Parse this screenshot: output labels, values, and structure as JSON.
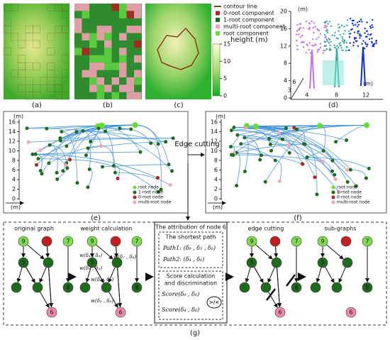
{
  "panels": {
    "a": "(a)",
    "b": "(b)",
    "c": "(c)",
    "d": "(d)",
    "e": "(e)",
    "f": "(f)",
    "g": "(g)"
  },
  "legend_top": [
    "contour line",
    "0-root component",
    "1-root component",
    "multi-root component",
    "root component"
  ],
  "colorbar": {
    "title": "height (m)",
    "ticks": [
      15,
      10,
      5,
      0
    ]
  },
  "panel_d": {
    "unit": "(m)",
    "yticks": [
      20,
      16,
      12,
      8,
      4,
      0
    ],
    "xticks": [
      4,
      8,
      12
    ],
    "zticks": [
      3,
      6
    ]
  },
  "graph_panels": {
    "unit": "(m)",
    "yticks": [
      16,
      14,
      12,
      10,
      8,
      6,
      4,
      2,
      0
    ],
    "legend": [
      "root node",
      "1-root node",
      "0-root node",
      "multi-root node"
    ]
  },
  "edge_cutting": "Edge cutting",
  "g": {
    "original": "original graph",
    "weight": "weight calculation",
    "attribution": "The attribution of node 6",
    "shortest": "The shortest path",
    "path1": "Path1: (δ₉ , δ₅ , δ₆)",
    "path2": "Path2: (δ₄ , δ₆)",
    "score_title": "Score calculation",
    "score_title2": "and discrimination",
    "score1": "Score(δ₉ , δ₆)",
    "score2": "Score(δ₄ , δ₆)",
    "compare": ">/<",
    "w1": "w(δ₉ , δ₅)",
    "w2": "w(δ₄ , δ₆)",
    "w3": "w(δ₇ , δ₈)",
    "w4": "w(δ₅ , δ₆)",
    "w5": "w(δ₃ , δ₆)",
    "cutting": "edge cutting",
    "subgraphs": "sub-graphs",
    "nodes": {
      "n9": "9",
      "n7": "7",
      "n5": "5",
      "n8": "8",
      "n6": "6"
    }
  }
}
